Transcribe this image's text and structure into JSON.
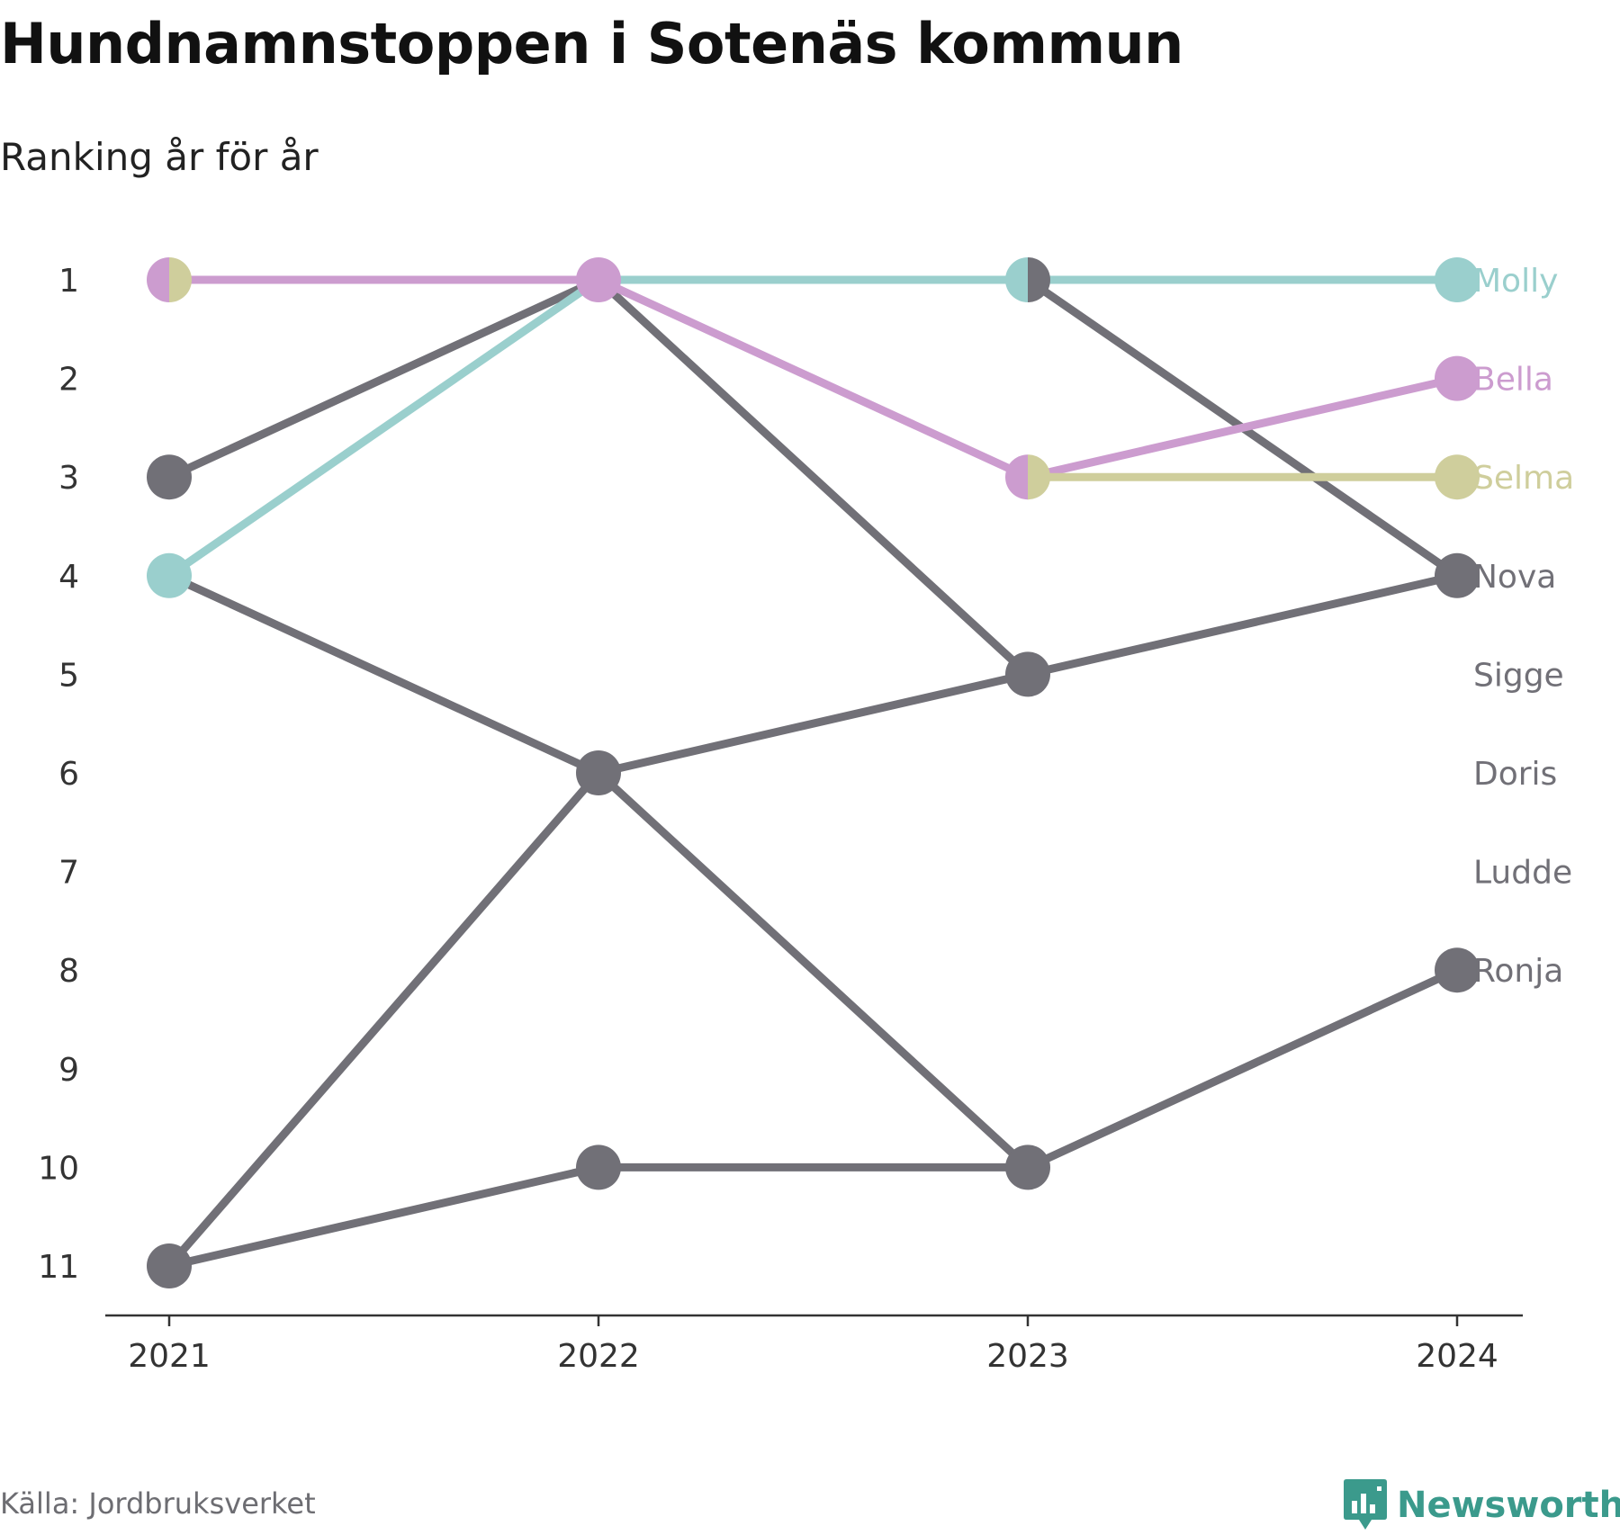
{
  "title": "Hundnamnstoppen i Sotenäs kommun",
  "subtitle": "Ranking år för år",
  "source": "Källa: Jordbruksverket",
  "brand": "Newsworthy",
  "colors": {
    "gray": "#717077",
    "molly": "#9acfcd",
    "bella": "#cc9ccf",
    "selma": "#cfce9c",
    "brand": "#3b9a8c"
  },
  "chart_data": {
    "type": "line",
    "variant": "bump",
    "x": [
      2021,
      2022,
      2023,
      2024
    ],
    "x_tick_labels": [
      "2021",
      "2022",
      "2023",
      "2024"
    ],
    "y_tick_labels": [
      "1",
      "2",
      "3",
      "4",
      "5",
      "6",
      "7",
      "8",
      "9",
      "10",
      "11"
    ],
    "ylim": [
      1,
      11
    ],
    "y_reversed": true,
    "grid": false,
    "series": [
      {
        "name": "Nova",
        "color": "#717077",
        "values": [
          3,
          1,
          1,
          4
        ]
      },
      {
        "name": "Sigge",
        "color": "#717077",
        "values": [
          4,
          6,
          10,
          null
        ]
      },
      {
        "name": "Doris",
        "color": "#717077",
        "values": [
          11,
          6,
          5,
          4
        ]
      },
      {
        "name": "Ludde",
        "color": "#717077",
        "values": [
          null,
          1,
          5,
          null
        ]
      },
      {
        "name": "Ronja",
        "color": "#717077",
        "values": [
          11,
          10,
          10,
          8
        ]
      },
      {
        "name": "Molly",
        "color": "#9acfcd",
        "values": [
          4,
          1,
          1,
          1
        ]
      },
      {
        "name": "Bella",
        "color": "#cc9ccf",
        "values": [
          1,
          1,
          3,
          2
        ]
      },
      {
        "name": "Selma",
        "color": "#cfce9c",
        "values": [
          1,
          null,
          3,
          3
        ]
      }
    ],
    "shared_markers": [
      {
        "x": 2021,
        "y": 1,
        "colors": [
          "#cc9ccf",
          "#cfce9c"
        ]
      },
      {
        "x": 2023,
        "y": 1,
        "colors": [
          "#9acfcd",
          "#717077"
        ]
      },
      {
        "x": 2023,
        "y": 3,
        "colors": [
          "#cc9ccf",
          "#cfce9c"
        ]
      }
    ],
    "end_labels": [
      {
        "text": "Molly",
        "rank": 1,
        "color": "#9acfcd"
      },
      {
        "text": "Bella",
        "rank": 2,
        "color": "#cc9ccf"
      },
      {
        "text": "Selma",
        "rank": 3,
        "color": "#cfce9c"
      },
      {
        "text": "Nova",
        "rank": 4,
        "color": "#717077"
      },
      {
        "text": "Sigge",
        "rank": 5,
        "color": "#717077"
      },
      {
        "text": "Doris",
        "rank": 6,
        "color": "#717077"
      },
      {
        "text": "Ludde",
        "rank": 7,
        "color": "#717077"
      },
      {
        "text": "Ronja",
        "rank": 8,
        "color": "#717077"
      }
    ]
  }
}
